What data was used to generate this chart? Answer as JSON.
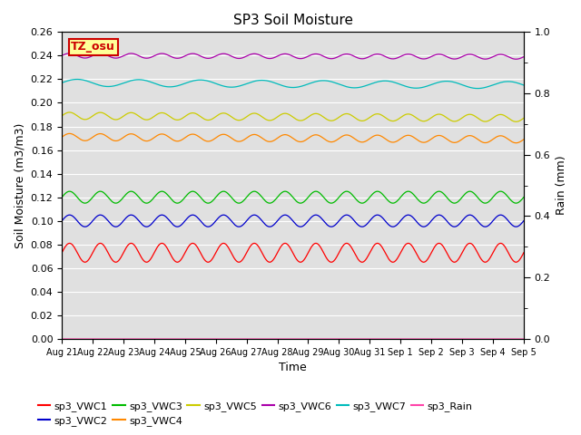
{
  "title": "SP3 Soil Moisture",
  "xlabel": "Time",
  "ylabel_left": "Soil Moisture (m3/m3)",
  "ylabel_right": "Rain (mm)",
  "ylim_left": [
    0.0,
    0.26
  ],
  "ylim_right": [
    0.0,
    1.0
  ],
  "yticks_left": [
    0.0,
    0.02,
    0.04,
    0.06,
    0.08,
    0.1,
    0.12,
    0.14,
    0.16,
    0.18,
    0.2,
    0.22,
    0.24,
    0.26
  ],
  "yticks_right_labels": [
    0.0,
    0.2,
    0.4,
    0.6,
    0.8,
    1.0
  ],
  "bg_color": "#e0e0e0",
  "series": {
    "sp3_VWC1": {
      "color": "#ff0000",
      "mean": 0.073,
      "amp": 0.008,
      "freq": 15.0,
      "trend": 0.0
    },
    "sp3_VWC2": {
      "color": "#0000cc",
      "mean": 0.1,
      "amp": 0.005,
      "freq": 15.0,
      "trend": 0.0
    },
    "sp3_VWC3": {
      "color": "#00bb00",
      "mean": 0.12,
      "amp": 0.005,
      "freq": 15.0,
      "trend": 0.0
    },
    "sp3_VWC4": {
      "color": "#ff8800",
      "mean": 0.171,
      "amp": 0.003,
      "freq": 15.0,
      "trend": -0.002
    },
    "sp3_VWC5": {
      "color": "#cccc00",
      "mean": 0.189,
      "amp": 0.003,
      "freq": 15.0,
      "trend": -0.002
    },
    "sp3_VWC6": {
      "color": "#aa00aa",
      "mean": 0.24,
      "amp": 0.002,
      "freq": 15.0,
      "trend": -0.001
    },
    "sp3_VWC7": {
      "color": "#00bbbb",
      "mean": 0.217,
      "amp": 0.003,
      "freq": 7.5,
      "trend": -0.002
    },
    "sp3_Rain": {
      "color": "#ff44aa",
      "mean": 0.0,
      "amp": 0.0,
      "freq": 0.0,
      "trend": 0.0
    }
  },
  "tz_label": "TZ_osu",
  "tz_box_facecolor": "#ffff99",
  "tz_box_edgecolor": "#cc0000",
  "legend_order_row1": [
    "sp3_VWC1",
    "sp3_VWC2",
    "sp3_VWC3",
    "sp3_VWC4",
    "sp3_VWC5",
    "sp3_VWC6"
  ],
  "legend_order_row2": [
    "sp3_VWC7",
    "sp3_Rain"
  ],
  "n_points": 1500,
  "xtick_labels": [
    "Aug 21",
    "Aug 22",
    "Aug 23",
    "Aug 24",
    "Aug 25",
    "Aug 26",
    "Aug 27",
    "Aug 28",
    "Aug 29",
    "Aug 30",
    "Aug 31",
    "Sep 1",
    "Sep 2",
    "Sep 3",
    "Sep 4",
    "Sep 5"
  ]
}
